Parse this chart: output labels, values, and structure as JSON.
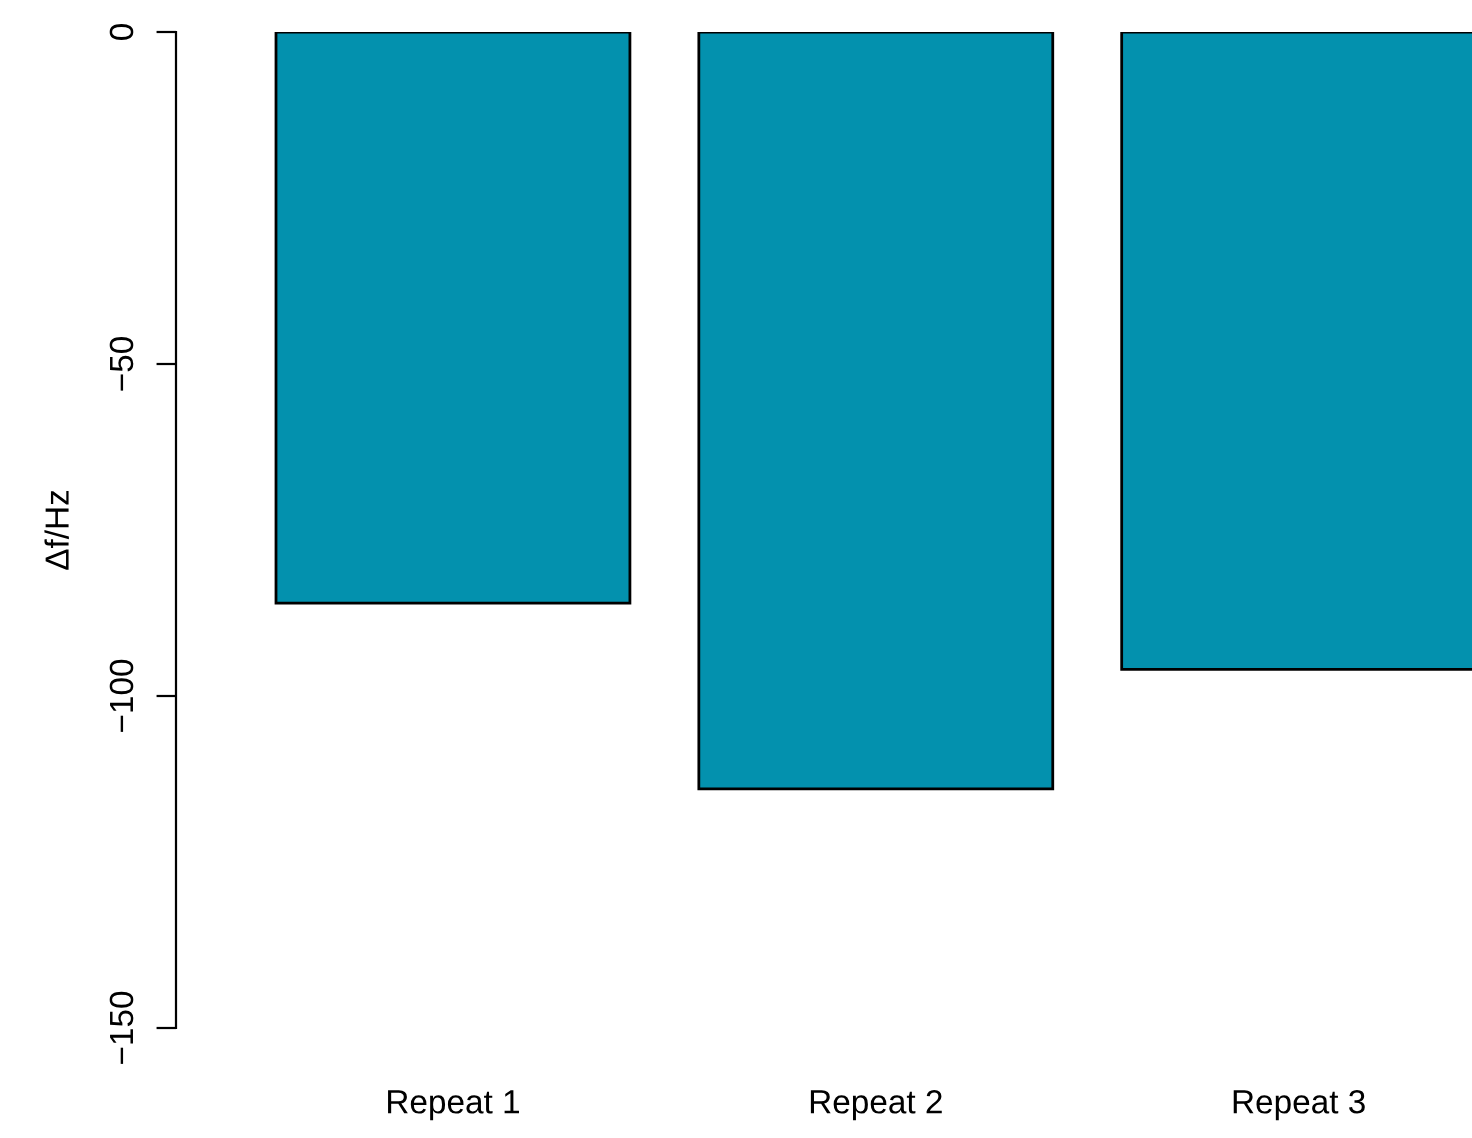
{
  "chart_data": {
    "type": "bar",
    "ylabel": "Δf/Hz",
    "categories": [
      "Repeat 1",
      "Repeat 2",
      "Repeat 3"
    ],
    "values": [
      -86,
      -114,
      -96
    ],
    "color": "#0391ae",
    "ylim": [
      -150,
      0
    ],
    "yticks": [
      -150,
      -100,
      -50,
      0
    ],
    "grid": false,
    "legend": false
  }
}
